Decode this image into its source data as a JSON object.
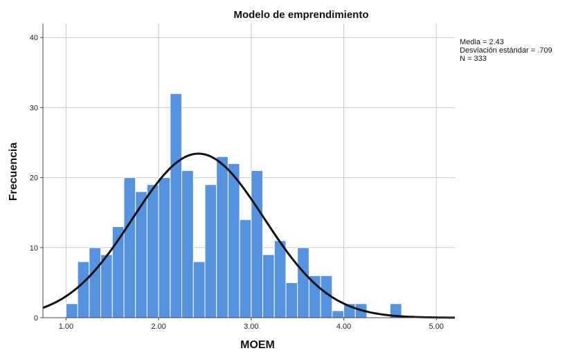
{
  "chart_data": {
    "type": "bar",
    "subtype": "histogram",
    "title": "Modelo de emprendimiento",
    "xlabel": "MOEM",
    "ylabel": "Frecuencia",
    "xlim": [
      0.75,
      5.2
    ],
    "ylim": [
      0,
      42
    ],
    "x_ticks": [
      1.0,
      2.0,
      3.0,
      4.0,
      5.0
    ],
    "x_tick_labels": [
      "1.00",
      "2.00",
      "3.00",
      "4.00",
      "5.00"
    ],
    "y_ticks": [
      0,
      10,
      20,
      30,
      40
    ],
    "y_tick_labels": [
      "0",
      "10",
      "20",
      "30",
      "40"
    ],
    "grid": true,
    "bin_width": 0.125,
    "bin_start": 1.0,
    "values": [
      2,
      8,
      10,
      9,
      13,
      20,
      18,
      19,
      20,
      32,
      21,
      8,
      19,
      23,
      22,
      14,
      21,
      9,
      11,
      5,
      10,
      6,
      6,
      1,
      2,
      2,
      0,
      0,
      2
    ],
    "bar_color": "#5592e0",
    "normal_curve": {
      "mean": 2.43,
      "sd": 0.709,
      "n": 333,
      "color": "#111111"
    },
    "stats": {
      "media": "Media = 2.43",
      "desviacion": "Desviación estándar = .709",
      "n": "N = 333"
    }
  }
}
